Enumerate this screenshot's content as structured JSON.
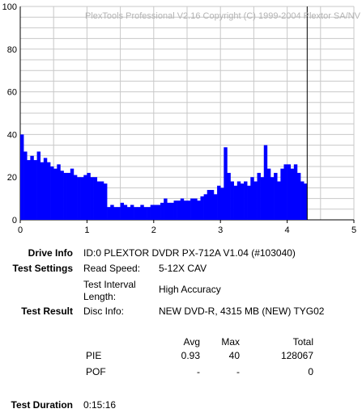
{
  "chart_data": {
    "type": "bar",
    "watermark": "PlexTools Professional V2.16 Copyright (C) 1999-2004 Plextor SA/NV",
    "xlim": [
      0,
      5
    ],
    "ylim": [
      0,
      100
    ],
    "x_ticks": [
      "0",
      "1",
      "2",
      "3",
      "4",
      "5"
    ],
    "y_ticks": [
      "0",
      "20",
      "40",
      "60",
      "80",
      "100"
    ],
    "grid": true,
    "marker_x": 4.3,
    "colors": {
      "bars": "#0000ff",
      "grid": "#c8c8c8",
      "marker": "#000000",
      "watermark": "#b4b4b4"
    },
    "series": [
      {
        "x": [
          0.0,
          0.05,
          0.1,
          0.15,
          0.2,
          0.25,
          0.3,
          0.35,
          0.4,
          0.45,
          0.5,
          0.55,
          0.6,
          0.65,
          0.7,
          0.75,
          0.8,
          0.85,
          0.9,
          0.95,
          1.0,
          1.05,
          1.1,
          1.15,
          1.2,
          1.25,
          1.3,
          1.35,
          1.4,
          1.45,
          1.5,
          1.55,
          1.6,
          1.65,
          1.7,
          1.75,
          1.8,
          1.85,
          1.9,
          1.95,
          2.0,
          2.05,
          2.1,
          2.15,
          2.2,
          2.25,
          2.3,
          2.35,
          2.4,
          2.45,
          2.5,
          2.55,
          2.6,
          2.65,
          2.7,
          2.75,
          2.8,
          2.85,
          2.9,
          2.95,
          3.0,
          3.05,
          3.1,
          3.15,
          3.2,
          3.25,
          3.3,
          3.35,
          3.4,
          3.45,
          3.5,
          3.55,
          3.6,
          3.65,
          3.7,
          3.75,
          3.8,
          3.85,
          3.9,
          3.95,
          4.0,
          4.05,
          4.1,
          4.15,
          4.2,
          4.25
        ],
        "values": [
          40,
          32,
          28,
          30,
          28,
          32,
          27,
          29,
          27,
          25,
          24,
          26,
          23,
          22,
          22,
          24,
          21,
          20,
          20,
          21,
          22,
          20,
          20,
          18,
          18,
          17,
          6,
          7,
          6,
          6,
          8,
          7,
          6,
          7,
          6,
          6,
          7,
          6,
          6,
          7,
          7,
          7,
          8,
          10,
          8,
          8,
          9,
          9,
          10,
          9,
          9,
          10,
          10,
          9,
          11,
          12,
          14,
          14,
          12,
          16,
          15,
          34,
          22,
          18,
          16,
          18,
          17,
          18,
          16,
          20,
          18,
          22,
          20,
          35,
          24,
          20,
          22,
          18,
          24,
          26,
          26,
          24,
          26,
          22,
          18,
          17
        ]
      }
    ]
  },
  "info": {
    "drive_info_label": "Drive Info",
    "drive_info_value": "ID:0 PLEXTOR DVDR PX-712A V1.04 (#103040)",
    "test_settings_label": "Test Settings",
    "read_speed_label": "Read Speed:",
    "read_speed_value": "5-12X CAV",
    "interval_label_1": "Test Interval",
    "interval_label_2": "Length:",
    "interval_value": "High Accuracy",
    "test_result_label": "Test Result",
    "disc_info_label": "Disc Info:",
    "disc_info_value": "NEW DVD-R, 4315 MB (NEW) TYG02"
  },
  "stats": {
    "headers": {
      "avg": "Avg",
      "max": "Max",
      "total": "Total"
    },
    "rows": [
      {
        "name": "PIE",
        "avg": "0.93",
        "max": "40",
        "total": "128067"
      },
      {
        "name": "POF",
        "avg": "-",
        "max": "-",
        "total": "0"
      }
    ]
  },
  "duration": {
    "label": "Test Duration",
    "value": "0:15:16"
  }
}
